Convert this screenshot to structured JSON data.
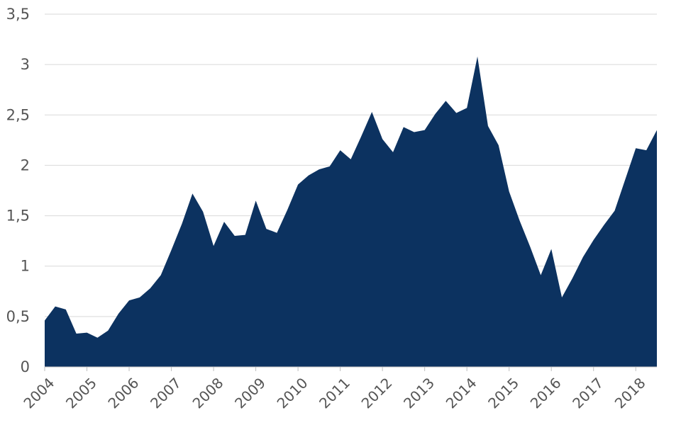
{
  "chart_data": {
    "type": "area",
    "title": "",
    "xlabel": "",
    "ylabel": "",
    "xlim": [
      2004,
      2018.5
    ],
    "ylim": [
      0,
      3.5
    ],
    "y_ticks": [
      0,
      0.5,
      1,
      1.5,
      2,
      2.5,
      3,
      3.5
    ],
    "y_tick_labels": [
      "0",
      "0,5",
      "1",
      "1,5",
      "2",
      "2,5",
      "3",
      "3,5"
    ],
    "x_ticks": [
      2004,
      2005,
      2006,
      2007,
      2008,
      2009,
      2010,
      2011,
      2012,
      2013,
      2014,
      2015,
      2016,
      2017,
      2018
    ],
    "x_tick_labels": [
      "2004",
      "2005",
      "2006",
      "2007",
      "2008",
      "2009",
      "2010",
      "2011",
      "2012",
      "2013",
      "2014",
      "2015",
      "2016",
      "2017",
      "2018"
    ],
    "grid": true,
    "legend": "none",
    "color": "#0c3260",
    "series": [
      {
        "x": [
          2004.0,
          2004.25,
          2004.5,
          2004.75,
          2005.0,
          2005.25,
          2005.5,
          2005.75,
          2006.0,
          2006.25,
          2006.5,
          2006.75,
          2007.0,
          2007.25,
          2007.5,
          2007.75,
          2008.0,
          2008.25,
          2008.5,
          2008.75,
          2009.0,
          2009.25,
          2009.5,
          2009.75,
          2010.0,
          2010.25,
          2010.5,
          2010.75,
          2011.0,
          2011.25,
          2011.5,
          2011.75,
          2012.0,
          2012.25,
          2012.5,
          2012.75,
          2013.0,
          2013.25,
          2013.5,
          2013.75,
          2014.0,
          2014.25,
          2014.5,
          2014.75,
          2015.0,
          2015.25,
          2015.5,
          2015.75,
          2016.0,
          2016.25,
          2016.5,
          2016.75,
          2017.0,
          2017.25,
          2017.5,
          2017.75,
          2018.0,
          2018.25,
          2018.5
        ],
        "values": [
          0.46,
          0.6,
          0.57,
          0.33,
          0.34,
          0.29,
          0.36,
          0.53,
          0.66,
          0.69,
          0.78,
          0.91,
          1.16,
          1.42,
          1.72,
          1.54,
          1.2,
          1.44,
          1.3,
          1.31,
          1.65,
          1.37,
          1.33,
          1.56,
          1.81,
          1.9,
          1.96,
          1.99,
          2.15,
          2.06,
          2.29,
          2.53,
          2.26,
          2.13,
          2.38,
          2.33,
          2.35,
          2.51,
          2.64,
          2.52,
          2.57,
          3.08,
          2.39,
          2.2,
          1.74,
          1.45,
          1.19,
          0.91,
          1.17,
          0.69,
          0.88,
          1.09,
          1.26,
          1.41,
          1.55,
          1.86,
          2.17,
          2.15,
          2.35
        ]
      }
    ]
  }
}
